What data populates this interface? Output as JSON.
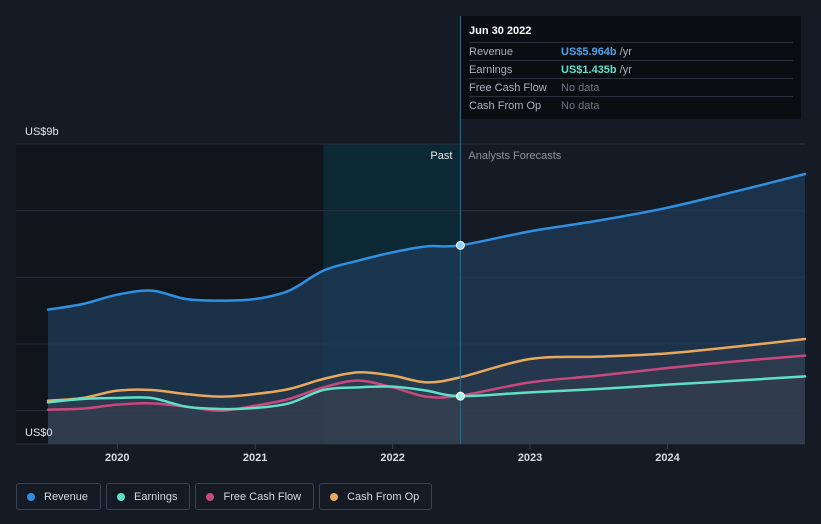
{
  "tooltip": {
    "date": "Jun 30 2022",
    "rows": [
      {
        "label": "Revenue",
        "value": "US$5.964b",
        "unit": "/yr",
        "color": "#4ea3e6"
      },
      {
        "label": "Earnings",
        "value": "US$1.435b",
        "unit": "/yr",
        "color": "#5fe0c6"
      },
      {
        "label": "Free Cash Flow",
        "value": "No data",
        "unit": "",
        "color": ""
      },
      {
        "label": "Cash From Op",
        "value": "No data",
        "unit": "",
        "color": ""
      }
    ]
  },
  "legend": [
    {
      "label": "Revenue",
      "color": "#2f8fe0"
    },
    {
      "label": "Earnings",
      "color": "#5fe0c6"
    },
    {
      "label": "Free Cash Flow",
      "color": "#c9497e"
    },
    {
      "label": "Cash From Op",
      "color": "#e8a95c"
    }
  ],
  "chart_data": {
    "type": "line",
    "ylabel_top": "US$9b",
    "ylabel_bottom": "US$0",
    "ylim": [
      0,
      9
    ],
    "xlim": [
      "2019-07-01",
      "2024-12-31"
    ],
    "x_ticks": [
      "2020",
      "2021",
      "2022",
      "2023",
      "2024"
    ],
    "past_label": "Past",
    "forecast_label": "Analysts Forecasts",
    "divider_date": "2022-06-30",
    "highlight_start": "2021-07-01",
    "grid": true,
    "series": [
      {
        "name": "Revenue",
        "color": "#2f8fe0",
        "points": [
          [
            "2019-07-01",
            4.03
          ],
          [
            "2019-10-01",
            4.2
          ],
          [
            "2020-01-01",
            4.48
          ],
          [
            "2020-04-01",
            4.6
          ],
          [
            "2020-07-01",
            4.35
          ],
          [
            "2020-10-01",
            4.3
          ],
          [
            "2021-01-01",
            4.35
          ],
          [
            "2021-04-01",
            4.6
          ],
          [
            "2021-07-01",
            5.2
          ],
          [
            "2021-10-01",
            5.5
          ],
          [
            "2022-01-01",
            5.75
          ],
          [
            "2022-04-01",
            5.93
          ],
          [
            "2022-06-30",
            5.96
          ],
          [
            "2023-01-01",
            6.38
          ],
          [
            "2023-07-01",
            6.7
          ],
          [
            "2024-01-01",
            7.09
          ],
          [
            "2024-07-01",
            7.58
          ],
          [
            "2024-12-31",
            8.1
          ]
        ]
      },
      {
        "name": "Earnings",
        "color": "#5fe0c6",
        "points": [
          [
            "2019-07-01",
            1.25
          ],
          [
            "2019-10-01",
            1.35
          ],
          [
            "2020-01-01",
            1.38
          ],
          [
            "2020-04-01",
            1.38
          ],
          [
            "2020-07-01",
            1.12
          ],
          [
            "2020-10-01",
            1.05
          ],
          [
            "2021-01-01",
            1.08
          ],
          [
            "2021-04-01",
            1.22
          ],
          [
            "2021-07-01",
            1.62
          ],
          [
            "2021-10-01",
            1.7
          ],
          [
            "2022-01-01",
            1.72
          ],
          [
            "2022-04-01",
            1.6
          ],
          [
            "2022-06-30",
            1.435
          ],
          [
            "2023-01-01",
            1.55
          ],
          [
            "2023-07-01",
            1.65
          ],
          [
            "2024-01-01",
            1.78
          ],
          [
            "2024-07-01",
            1.9
          ],
          [
            "2024-12-31",
            2.03
          ]
        ]
      },
      {
        "name": "Free Cash Flow",
        "color": "#c9497e",
        "points": [
          [
            "2019-07-01",
            1.03
          ],
          [
            "2019-10-01",
            1.06
          ],
          [
            "2020-01-01",
            1.18
          ],
          [
            "2020-04-01",
            1.22
          ],
          [
            "2020-07-01",
            1.12
          ],
          [
            "2020-10-01",
            1.0
          ],
          [
            "2021-01-01",
            1.15
          ],
          [
            "2021-04-01",
            1.35
          ],
          [
            "2021-07-01",
            1.7
          ],
          [
            "2021-10-01",
            1.9
          ],
          [
            "2022-01-01",
            1.7
          ],
          [
            "2022-04-01",
            1.42
          ],
          [
            "2022-06-30",
            1.45
          ],
          [
            "2023-01-01",
            1.85
          ],
          [
            "2023-07-01",
            2.05
          ],
          [
            "2024-01-01",
            2.28
          ],
          [
            "2024-07-01",
            2.48
          ],
          [
            "2024-12-31",
            2.65
          ]
        ]
      },
      {
        "name": "Cash From Op",
        "color": "#e8a95c",
        "points": [
          [
            "2019-07-01",
            1.3
          ],
          [
            "2019-10-01",
            1.38
          ],
          [
            "2020-01-01",
            1.6
          ],
          [
            "2020-04-01",
            1.62
          ],
          [
            "2020-07-01",
            1.5
          ],
          [
            "2020-10-01",
            1.42
          ],
          [
            "2021-01-01",
            1.5
          ],
          [
            "2021-04-01",
            1.65
          ],
          [
            "2021-07-01",
            1.95
          ],
          [
            "2021-10-01",
            2.15
          ],
          [
            "2022-01-01",
            2.05
          ],
          [
            "2022-04-01",
            1.85
          ],
          [
            "2022-06-30",
            2.0
          ],
          [
            "2023-01-01",
            2.55
          ],
          [
            "2023-07-01",
            2.62
          ],
          [
            "2024-01-01",
            2.72
          ],
          [
            "2024-07-01",
            2.92
          ],
          [
            "2024-12-31",
            3.15
          ]
        ]
      }
    ]
  }
}
